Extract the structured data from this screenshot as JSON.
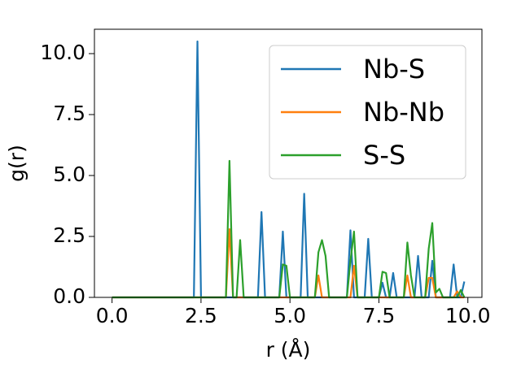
{
  "chart_data": {
    "type": "line",
    "xlabel": "r (Å)",
    "ylabel": "g(r)",
    "x": [
      0,
      0.1,
      0.2,
      0.3,
      0.4,
      0.5,
      0.6,
      0.7,
      0.8,
      0.9,
      1,
      1.1,
      1.2,
      1.3,
      1.4,
      1.5,
      1.6,
      1.7,
      1.8,
      1.9,
      2,
      2.1,
      2.2,
      2.3,
      2.4,
      2.5,
      2.6,
      2.7,
      2.8,
      2.9,
      3,
      3.1,
      3.2,
      3.3,
      3.4,
      3.5,
      3.6,
      3.7,
      3.8,
      3.9,
      4,
      4.1,
      4.2,
      4.3,
      4.4,
      4.5,
      4.6,
      4.7,
      4.8,
      4.9,
      5,
      5.1,
      5.2,
      5.3,
      5.4,
      5.5,
      5.6,
      5.7,
      5.8,
      5.9,
      6,
      6.1,
      6.2,
      6.3,
      6.4,
      6.5,
      6.6,
      6.7,
      6.8,
      6.9,
      7,
      7.1,
      7.2,
      7.3,
      7.4,
      7.5,
      7.6,
      7.7,
      7.8,
      7.9,
      8,
      8.1,
      8.2,
      8.3,
      8.4,
      8.5,
      8.6,
      8.7,
      8.8,
      8.9,
      9,
      9.1,
      9.2,
      9.3,
      9.4,
      9.5,
      9.6,
      9.7,
      9.8,
      9.9
    ],
    "series": [
      {
        "name": "Nb-S",
        "color": "#1f77b4",
        "values": [
          0,
          0,
          0,
          0,
          0,
          0,
          0,
          0,
          0,
          0,
          0,
          0,
          0,
          0,
          0,
          0,
          0,
          0,
          0,
          0,
          0,
          0,
          0,
          0,
          10.5,
          0,
          0,
          0,
          0,
          0,
          0,
          0,
          0,
          0,
          0,
          0,
          0,
          0,
          0,
          0,
          0,
          0,
          3.5,
          0,
          0,
          0,
          0,
          0,
          2.7,
          0,
          0,
          0,
          0,
          0,
          4.25,
          0,
          0,
          0,
          0,
          0,
          0,
          0,
          0,
          0,
          0,
          0,
          0,
          2.75,
          0,
          0,
          0,
          0,
          2.4,
          0,
          0,
          0,
          0.6,
          0,
          0,
          1.0,
          0,
          0,
          0,
          0,
          0,
          0,
          1.7,
          0,
          0,
          0,
          1.5,
          0,
          0,
          0,
          0,
          0,
          1.35,
          0,
          0,
          0.65
        ]
      },
      {
        "name": "Nb-Nb",
        "color": "#ff7f0e",
        "values": [
          0,
          0,
          0,
          0,
          0,
          0,
          0,
          0,
          0,
          0,
          0,
          0,
          0,
          0,
          0,
          0,
          0,
          0,
          0,
          0,
          0,
          0,
          0,
          0,
          0,
          0,
          0,
          0,
          0,
          0,
          0,
          0,
          0,
          2.8,
          0,
          0,
          0,
          0,
          0,
          0,
          0,
          0,
          0,
          0,
          0,
          0,
          0,
          0,
          0,
          0,
          0,
          0,
          0,
          0,
          0,
          0,
          0,
          0,
          0.9,
          0,
          0,
          0,
          0,
          0,
          0,
          0,
          0,
          0,
          1.3,
          0,
          0,
          0,
          0,
          0,
          0,
          0,
          0,
          0,
          0,
          0,
          0,
          0,
          0,
          0.9,
          0,
          0,
          0,
          0,
          0,
          0.8,
          0.8,
          0,
          0,
          0,
          0,
          0,
          0,
          0.25,
          0,
          0
        ]
      },
      {
        "name": "S-S",
        "color": "#2ca02c",
        "values": [
          0,
          0,
          0,
          0,
          0,
          0,
          0,
          0,
          0,
          0,
          0,
          0,
          0,
          0,
          0,
          0,
          0,
          0,
          0,
          0,
          0,
          0,
          0,
          0,
          0,
          0,
          0,
          0,
          0,
          0,
          0,
          0,
          0,
          5.6,
          0,
          0,
          2.35,
          0,
          0,
          0,
          0,
          0,
          0,
          0,
          0,
          0,
          0,
          0,
          1.35,
          1.3,
          0,
          0,
          0,
          0,
          0,
          0,
          0,
          0,
          1.85,
          2.35,
          1.7,
          0,
          0,
          0,
          0,
          0,
          0,
          1.5,
          2.7,
          0,
          0,
          0,
          0,
          0,
          0,
          0,
          1.05,
          1.0,
          0,
          0,
          0,
          0,
          0,
          2.25,
          0.9,
          0,
          0,
          0,
          0,
          2.0,
          3.05,
          0.2,
          0.35,
          0,
          0,
          0,
          0,
          0,
          0.3,
          0
        ]
      }
    ],
    "xlim": [
      -0.495,
      10.395
    ],
    "xticks": [
      {
        "value": 0,
        "label": "0.0"
      },
      {
        "value": 2.5,
        "label": "2.5"
      },
      {
        "value": 5,
        "label": "5.0"
      },
      {
        "value": 7.5,
        "label": "7.5"
      },
      {
        "value": 10,
        "label": "10.0"
      }
    ],
    "ylim": [
      0,
      11
    ],
    "yticks": [
      {
        "value": 0,
        "label": "0.0"
      },
      {
        "value": 2.5,
        "label": "2.5"
      },
      {
        "value": 5,
        "label": "5.0"
      },
      {
        "value": 7.5,
        "label": "7.5"
      },
      {
        "value": 10,
        "label": "10.0"
      }
    ],
    "grid": false,
    "legend": "upper right"
  }
}
